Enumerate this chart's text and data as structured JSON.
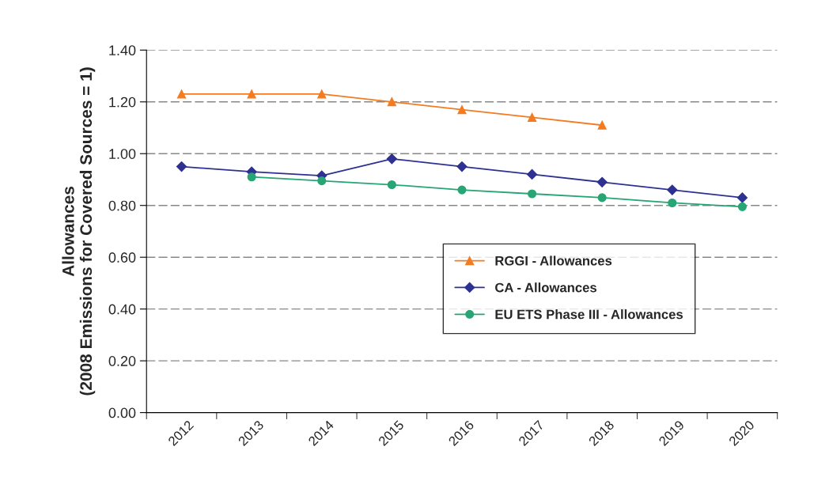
{
  "chart_data": {
    "type": "line",
    "ylabel": "Allowances\n(2008 Emissions for Covered Sources = 1)",
    "categories": [
      "2012",
      "2013",
      "2014",
      "2015",
      "2016",
      "2017",
      "2018",
      "2019",
      "2020"
    ],
    "series": [
      {
        "name": "RGGI - Allowances",
        "color": "#f47b20",
        "marker": "triangle",
        "values": [
          1.23,
          1.23,
          1.23,
          1.2,
          1.17,
          1.14,
          1.11,
          null,
          null
        ]
      },
      {
        "name": "CA - Allowances",
        "color": "#2e3192",
        "marker": "diamond",
        "values": [
          0.95,
          0.93,
          0.915,
          0.98,
          0.95,
          0.92,
          0.89,
          0.86,
          0.83
        ]
      },
      {
        "name": "EU ETS Phase III - Allowances",
        "color": "#27a575",
        "marker": "circle",
        "values": [
          null,
          0.91,
          0.895,
          0.88,
          0.86,
          0.845,
          0.83,
          0.81,
          0.795
        ]
      }
    ],
    "ylim": [
      0,
      1.4
    ],
    "yticks": [
      {
        "value": 0,
        "label": "0.00"
      },
      {
        "value": 0.2,
        "label": "0.20"
      },
      {
        "value": 0.4,
        "label": "0.40"
      },
      {
        "value": 0.6,
        "label": "0.60"
      },
      {
        "value": 0.8,
        "label": "0.80"
      },
      {
        "value": 1.0,
        "label": "1.00"
      },
      {
        "value": 1.2,
        "label": "1.20"
      },
      {
        "value": 1.4,
        "label": "1.40"
      }
    ],
    "grid": "y",
    "legend": "bottom right",
    "line_style": "solid"
  }
}
